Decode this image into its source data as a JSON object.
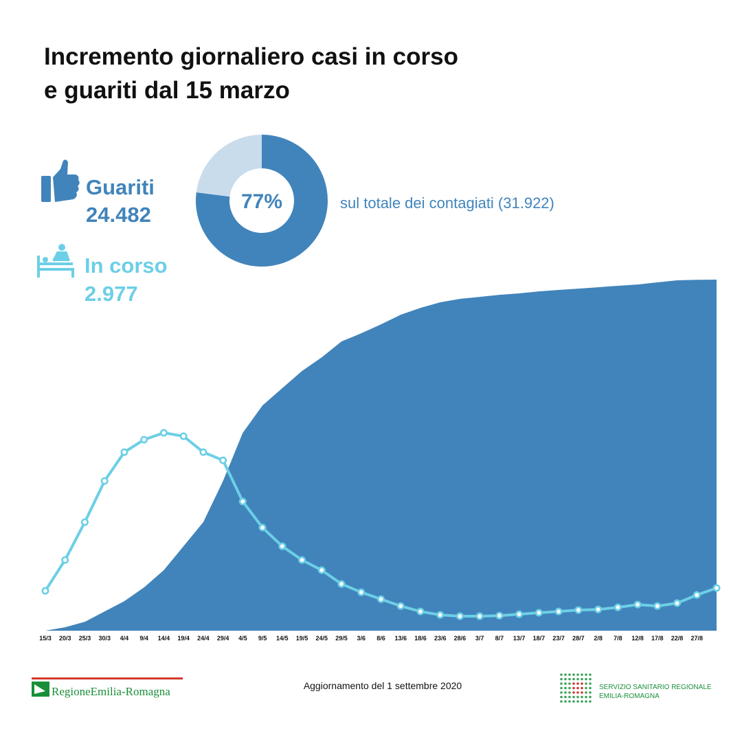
{
  "chart_data": [
    {
      "type": "pie",
      "values": [
        77,
        23
      ],
      "value_labels": [
        "77%",
        null
      ],
      "colors": [
        "#4184bb",
        "#c9dcec"
      ],
      "caption": "sul totale dei contagiati (31.922)"
    },
    {
      "type": "area-line",
      "title": [
        "Incremento giornaliero casi in corso",
        "e guariti dal 15 marzo"
      ],
      "categories": [
        "15/3",
        "20/3",
        "25/3",
        "30/3",
        "4/4",
        "9/4",
        "14/4",
        "19/4",
        "24/4",
        "29/4",
        "4/5",
        "9/5",
        "14/5",
        "19/5",
        "24/5",
        "29/5",
        "3/6",
        "8/6",
        "13/6",
        "18/6",
        "23/6",
        "28/6",
        "3/7",
        "8/7",
        "13/7",
        "18/7",
        "23/7",
        "28/7",
        "2/8",
        "7/8",
        "12/8",
        "17/8",
        "22/8",
        "27/8",
        null
      ],
      "series": [
        {
          "name": "Guariti",
          "total": "24.482",
          "color": "#4184bb",
          "style": "area",
          "values": [
            0,
            240,
            620,
            1340,
            2060,
            3020,
            4220,
            5890,
            7570,
            10440,
            13800,
            15710,
            16910,
            18110,
            19060,
            20170,
            20740,
            21360,
            22030,
            22510,
            22900,
            23140,
            23280,
            23420,
            23520,
            23660,
            23760,
            23850,
            23950,
            24050,
            24140,
            24290,
            24430,
            24470,
            24482
          ]
        },
        {
          "name": "In corso",
          "total": "2.977",
          "color": "#6ccfe6",
          "style": "line",
          "values": [
            2780,
            4930,
            7570,
            10440,
            12450,
            13320,
            13800,
            13560,
            12450,
            11880,
            9010,
            7190,
            5890,
            4930,
            4220,
            3260,
            2680,
            2200,
            1720,
            1340,
            1100,
            1010,
            1010,
            1050,
            1150,
            1250,
            1340,
            1440,
            1480,
            1630,
            1820,
            1720,
            1920,
            2490,
            2977
          ]
        }
      ],
      "ylim": [
        0,
        24500
      ]
    }
  ],
  "footer": {
    "update": "Aggiornamento del 1 settembre 2020",
    "left_logo": "RegioneEmilia-Romagna",
    "right_logo": [
      "SERVIZIO SANITARIO REGIONALE",
      "EMILIA-ROMAGNA"
    ]
  }
}
